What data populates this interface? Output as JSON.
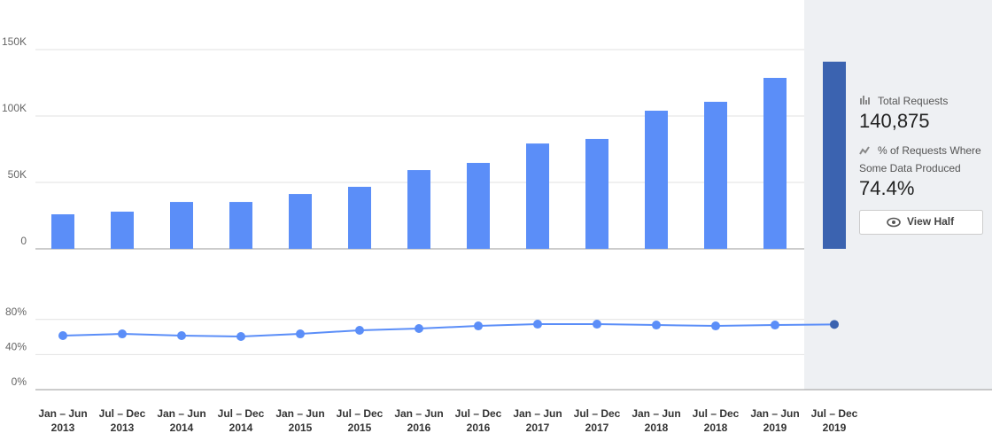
{
  "chart_data": [
    {
      "type": "bar",
      "categories": [
        [
          "Jan – Jun",
          "2013"
        ],
        [
          "Jul – Dec",
          "2013"
        ],
        [
          "Jan – Jun",
          "2014"
        ],
        [
          "Jul – Dec",
          "2014"
        ],
        [
          "Jan – Jun",
          "2015"
        ],
        [
          "Jul – Dec",
          "2015"
        ],
        [
          "Jan – Jun",
          "2016"
        ],
        [
          "Jul – Dec",
          "2016"
        ],
        [
          "Jan – Jun",
          "2017"
        ],
        [
          "Jul – Dec",
          "2017"
        ],
        [
          "Jan – Jun",
          "2018"
        ],
        [
          "Jul – Dec",
          "2018"
        ],
        [
          "Jan – Jun",
          "2019"
        ],
        [
          "Jul – Dec",
          "2019"
        ]
      ],
      "values": [
        26000,
        28000,
        35300,
        35300,
        41300,
        46700,
        59300,
        64700,
        79300,
        82700,
        104000,
        110700,
        128700,
        140875
      ],
      "color": "#5b8ef8",
      "highlight_color": "#3b63b0",
      "ylim": [
        0,
        150000
      ],
      "yticks": [
        0,
        {
          "value": 50000,
          "label": "50K"
        },
        {
          "value": 100000,
          "label": "100K"
        },
        {
          "value": 150000,
          "label": "150K"
        }
      ],
      "grid": true
    },
    {
      "type": "line",
      "values": [
        61.6,
        63.6,
        61.6,
        60.6,
        63.6,
        67.7,
        69.7,
        72.7,
        74.7,
        74.7,
        73.7,
        72.7,
        73.7,
        74.4
      ],
      "color": "#5b8ef8",
      "highlight_color": "#3b63b0",
      "ylim": [
        0,
        100
      ],
      "yticks": [
        {
          "value": 0,
          "label": "0%"
        },
        {
          "value": 40,
          "label": "40%"
        },
        {
          "value": 80,
          "label": "80%"
        }
      ],
      "grid": true
    }
  ],
  "panel": {
    "total_label": "Total Requests",
    "total_value": "140,875",
    "percent_label": [
      "% of Requests Where",
      "Some Data Produced"
    ],
    "percent_value": "74.4%",
    "button": "View Half"
  }
}
